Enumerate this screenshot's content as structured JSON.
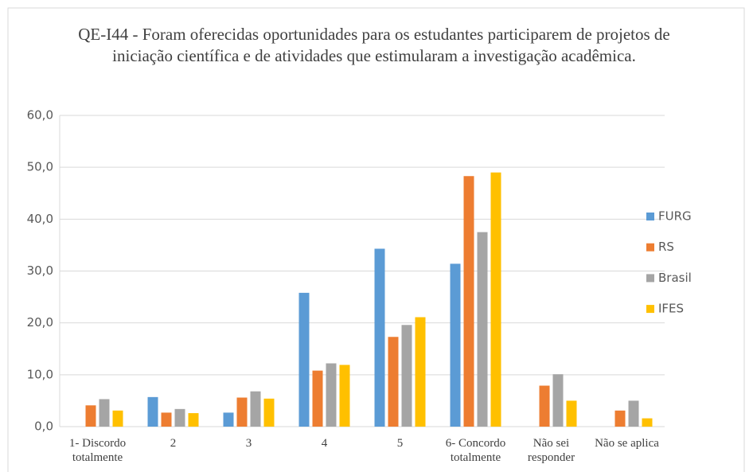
{
  "chart_data": {
    "type": "bar",
    "title": "QE-I44 - Foram oferecidas oportunidades para os estudantes participarem de projetos de iniciação científica e de atividades que estimularam a investigação acadêmica.",
    "categories": [
      "1- Discordo totalmente",
      "2",
      "3",
      "4",
      "5",
      "6- Concordo totalmente",
      "Não sei responder",
      "Não se aplica"
    ],
    "series": [
      {
        "name": "FURG",
        "color": "#5b9bd5",
        "values": [
          0,
          5.7,
          2.7,
          25.8,
          34.3,
          31.4,
          0,
          0
        ]
      },
      {
        "name": "RS",
        "color": "#ed7d31",
        "values": [
          4.1,
          2.7,
          5.6,
          10.8,
          17.3,
          48.3,
          7.9,
          3.1
        ]
      },
      {
        "name": "Brasil",
        "color": "#a5a5a5",
        "values": [
          5.3,
          3.4,
          6.8,
          12.2,
          19.6,
          37.5,
          10.1,
          5.0
        ]
      },
      {
        "name": "IFES",
        "color": "#ffc000",
        "values": [
          3.1,
          2.6,
          5.4,
          11.9,
          21.1,
          49.0,
          5.0,
          1.6
        ]
      }
    ],
    "ylim": [
      0,
      60
    ],
    "yticks": [
      {
        "value": 0,
        "label": "0,0"
      },
      {
        "value": 10,
        "label": "10,0"
      },
      {
        "value": 20,
        "label": "20,0"
      },
      {
        "value": 30,
        "label": "30,0"
      },
      {
        "value": 40,
        "label": "40,0"
      },
      {
        "value": 50,
        "label": "50,0"
      },
      {
        "value": 60,
        "label": "60,0"
      }
    ],
    "grid": true,
    "legend": "right"
  }
}
